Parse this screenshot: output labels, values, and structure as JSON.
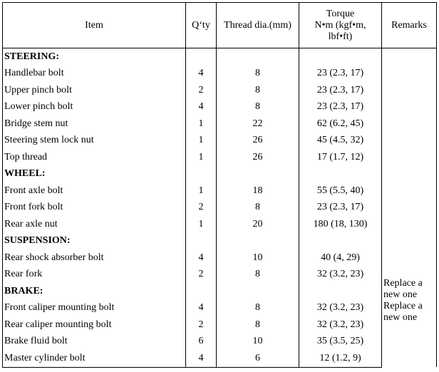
{
  "headers": {
    "item": "Item",
    "qty": "Q‘ty",
    "thread": "Thread dia.(mm)",
    "torque_line1": "Torque",
    "torque_line2": "N•m (kgf•m,",
    "torque_line3": "lbf•ft)",
    "remarks": "Remarks"
  },
  "rows": [
    {
      "section": "STEERING:"
    },
    {
      "item": "Handlebar bolt",
      "qty": "4",
      "thread": "8",
      "torque": "23 (2.3, 17)"
    },
    {
      "item": "Upper pinch bolt",
      "qty": "2",
      "thread": "8",
      "torque": "23 (2.3, 17)"
    },
    {
      "item": "Lower pinch bolt",
      "qty": "4",
      "thread": "8",
      "torque": "23 (2.3, 17)"
    },
    {
      "item": "Bridge stem nut",
      "qty": "1",
      "thread": "22",
      "torque": "62 (6.2, 45)"
    },
    {
      "item": "Steering stem lock nut",
      "qty": "1",
      "thread": "26",
      "torque": "45 (4.5, 32)"
    },
    {
      "item": "Top thread",
      "qty": "1",
      "thread": "26",
      "torque": "17 (1.7, 12)"
    },
    {
      "section": "WHEEL:"
    },
    {
      "item": "Front axle bolt",
      "qty": "1",
      "thread": "18",
      "torque": "55 (5.5, 40)"
    },
    {
      "item": "Front fork bolt",
      "qty": "2",
      "thread": "8",
      "torque": "23 (2.3, 17)"
    },
    {
      "item": "Rear axle nut",
      "qty": "1",
      "thread": "20",
      "torque": "180 (18, 130)"
    },
    {
      "section": "SUSPENSION:"
    },
    {
      "item": "Rear shock absorber bolt",
      "qty": "4",
      "thread": "10",
      "torque": "40 (4, 29)"
    },
    {
      "item": "Rear fork",
      "qty": "2",
      "thread": "8",
      "torque": "32 (3.2, 23)"
    },
    {
      "section": "BRAKE:"
    },
    {
      "item": "Front caliper mounting bolt",
      "qty": "4",
      "thread": "8",
      "torque": "32 (3.2, 23)"
    },
    {
      "item": "Rear caliper mounting bolt",
      "qty": "2",
      "thread": "8",
      "torque": "32 (3.2, 23)"
    },
    {
      "item": "Brake fluid bolt",
      "qty": "6",
      "thread": "10",
      "torque": "35 (3.5, 25)"
    },
    {
      "item": "Master cylinder bolt",
      "qty": "4",
      "thread": "6",
      "torque": "12 (1.2, 9)"
    }
  ],
  "remarks": [
    "Replace a new one",
    "Replace a new one"
  ]
}
